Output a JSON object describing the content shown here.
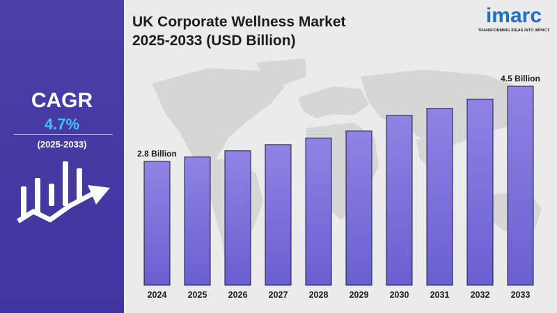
{
  "title_lines": [
    "UK Corporate Wellness Market",
    "2025-2033 (USD Billion)"
  ],
  "cagr": {
    "label": "CAGR",
    "value": "4.7%",
    "period": "(2025-2033)"
  },
  "logo": {
    "word": "imarc",
    "tagline": "TRANSFORMING IDEAS INTO IMPACT"
  },
  "colors": {
    "panel": "#4136a3",
    "bar_top": "#8f83e4",
    "bar_bottom": "#6a5fd0",
    "accent": "#3fc3f5"
  },
  "chart_data": {
    "type": "bar",
    "title": "UK Corporate Wellness Market 2025-2033 (USD Billion)",
    "categories": [
      "2024",
      "2025",
      "2026",
      "2027",
      "2028",
      "2029",
      "2030",
      "2031",
      "2032",
      "2033"
    ],
    "values": [
      2.8,
      2.9,
      3.04,
      3.18,
      3.33,
      3.49,
      3.84,
      4.0,
      4.21,
      4.5
    ],
    "data_labels": [
      {
        "index": 0,
        "text": "2.8 Billion"
      },
      {
        "index": 9,
        "text": "4.5 Billion"
      }
    ],
    "ylim": [
      0,
      4.5
    ],
    "grid": false,
    "legend": "none"
  }
}
